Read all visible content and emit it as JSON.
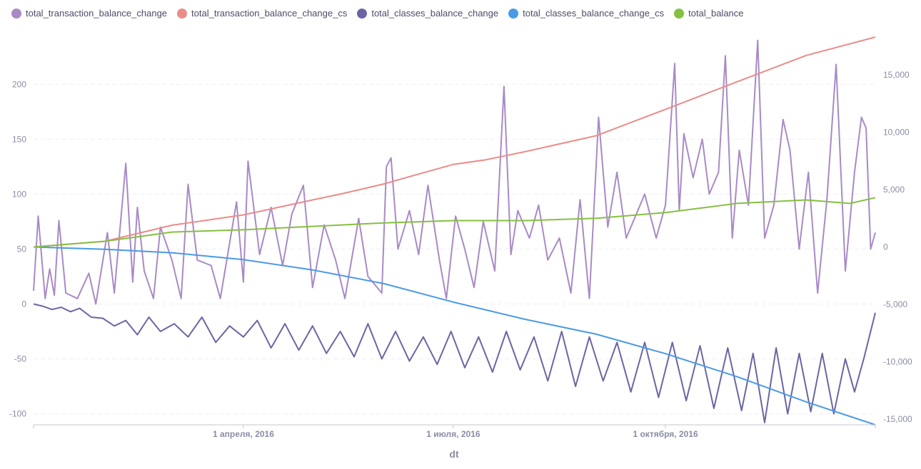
{
  "chart_data": {
    "type": "line",
    "xlabel": "dt",
    "x_range": [
      "2016-01-01",
      "2016-12-31"
    ],
    "x_ticks": [
      {
        "date": "2016-04-01",
        "label": "1 апреля, 2016"
      },
      {
        "date": "2016-07-01",
        "label": "1 июля, 2016"
      },
      {
        "date": "2016-10-01",
        "label": "1 октября, 2016"
      }
    ],
    "y_left": {
      "range": [
        -110,
        243
      ],
      "ticks": [
        -100,
        -50,
        0,
        50,
        100,
        150,
        200
      ],
      "tick_labels": [
        "-100",
        "-50",
        "0",
        "50",
        "100",
        "150",
        "200"
      ]
    },
    "y_right": {
      "range": [
        -15500,
        18300
      ],
      "ticks": [
        -15000,
        -10000,
        -5000,
        0,
        5000,
        10000,
        15000
      ],
      "tick_labels": [
        "-15,000",
        "-10,000",
        "-5,000",
        "0",
        "5,000",
        "10,000",
        "15,000"
      ]
    },
    "grid": true,
    "legend_position": "top-left",
    "series": [
      {
        "name": "total_transaction_balance_change",
        "color": "#a88ac6",
        "axis": "left",
        "points": [
          [
            "2016-01-01",
            12
          ],
          [
            "2016-01-03",
            80
          ],
          [
            "2016-01-06",
            5
          ],
          [
            "2016-01-08",
            32
          ],
          [
            "2016-01-10",
            8
          ],
          [
            "2016-01-12",
            76
          ],
          [
            "2016-01-15",
            10
          ],
          [
            "2016-01-20",
            5
          ],
          [
            "2016-01-25",
            28
          ],
          [
            "2016-01-28",
            0
          ],
          [
            "2016-02-02",
            65
          ],
          [
            "2016-02-05",
            10
          ],
          [
            "2016-02-10",
            128
          ],
          [
            "2016-02-13",
            20
          ],
          [
            "2016-02-15",
            88
          ],
          [
            "2016-02-18",
            30
          ],
          [
            "2016-02-22",
            5
          ],
          [
            "2016-02-25",
            70
          ],
          [
            "2016-03-01",
            40
          ],
          [
            "2016-03-05",
            5
          ],
          [
            "2016-03-08",
            109
          ],
          [
            "2016-03-12",
            40
          ],
          [
            "2016-03-18",
            35
          ],
          [
            "2016-03-22",
            5
          ],
          [
            "2016-03-29",
            93
          ],
          [
            "2016-04-01",
            20
          ],
          [
            "2016-04-03",
            130
          ],
          [
            "2016-04-08",
            45
          ],
          [
            "2016-04-13",
            88
          ],
          [
            "2016-04-18",
            35
          ],
          [
            "2016-04-22",
            82
          ],
          [
            "2016-04-27",
            108
          ],
          [
            "2016-05-01",
            15
          ],
          [
            "2016-05-06",
            72
          ],
          [
            "2016-05-11",
            40
          ],
          [
            "2016-05-15",
            5
          ],
          [
            "2016-05-21",
            78
          ],
          [
            "2016-05-25",
            25
          ],
          [
            "2016-05-31",
            10
          ],
          [
            "2016-06-02",
            125
          ],
          [
            "2016-06-04",
            133
          ],
          [
            "2016-06-07",
            50
          ],
          [
            "2016-06-12",
            85
          ],
          [
            "2016-06-16",
            45
          ],
          [
            "2016-06-20",
            108
          ],
          [
            "2016-06-25",
            40
          ],
          [
            "2016-06-28",
            5
          ],
          [
            "2016-07-02",
            80
          ],
          [
            "2016-07-06",
            50
          ],
          [
            "2016-07-10",
            15
          ],
          [
            "2016-07-14",
            75
          ],
          [
            "2016-07-19",
            30
          ],
          [
            "2016-07-23",
            198
          ],
          [
            "2016-07-26",
            45
          ],
          [
            "2016-07-29",
            85
          ],
          [
            "2016-08-03",
            60
          ],
          [
            "2016-08-07",
            90
          ],
          [
            "2016-08-11",
            40
          ],
          [
            "2016-08-16",
            60
          ],
          [
            "2016-08-21",
            10
          ],
          [
            "2016-08-25",
            95
          ],
          [
            "2016-08-29",
            5
          ],
          [
            "2016-09-02",
            170
          ],
          [
            "2016-09-06",
            70
          ],
          [
            "2016-09-10",
            120
          ],
          [
            "2016-09-14",
            60
          ],
          [
            "2016-09-18",
            80
          ],
          [
            "2016-09-22",
            100
          ],
          [
            "2016-09-27",
            60
          ],
          [
            "2016-10-01",
            90
          ],
          [
            "2016-10-05",
            219
          ],
          [
            "2016-10-07",
            85
          ],
          [
            "2016-10-09",
            155
          ],
          [
            "2016-10-13",
            115
          ],
          [
            "2016-10-17",
            150
          ],
          [
            "2016-10-20",
            100
          ],
          [
            "2016-10-24",
            120
          ],
          [
            "2016-10-27",
            226
          ],
          [
            "2016-10-30",
            60
          ],
          [
            "2016-11-02",
            140
          ],
          [
            "2016-11-06",
            90
          ],
          [
            "2016-11-10",
            240
          ],
          [
            "2016-11-13",
            60
          ],
          [
            "2016-11-17",
            90
          ],
          [
            "2016-11-21",
            168
          ],
          [
            "2016-11-24",
            140
          ],
          [
            "2016-11-28",
            50
          ],
          [
            "2016-12-02",
            120
          ],
          [
            "2016-12-06",
            10
          ],
          [
            "2016-12-10",
            95
          ],
          [
            "2016-12-14",
            218
          ],
          [
            "2016-12-18",
            30
          ],
          [
            "2016-12-22",
            120
          ],
          [
            "2016-12-25",
            170
          ],
          [
            "2016-12-27",
            160
          ],
          [
            "2016-12-29",
            50
          ],
          [
            "2016-12-31",
            65
          ]
        ]
      },
      {
        "name": "total_transaction_balance_change_cs",
        "color": "#ea8c8a",
        "axis": "right",
        "points": [
          [
            "2016-01-01",
            0
          ],
          [
            "2016-02-01",
            500
          ],
          [
            "2016-03-01",
            1900
          ],
          [
            "2016-04-01",
            2800
          ],
          [
            "2016-05-01",
            4100
          ],
          [
            "2016-05-15",
            4700
          ],
          [
            "2016-06-01",
            5500
          ],
          [
            "2016-06-15",
            6300
          ],
          [
            "2016-07-01",
            7200
          ],
          [
            "2016-07-15",
            7600
          ],
          [
            "2016-08-01",
            8300
          ],
          [
            "2016-09-01",
            9700
          ],
          [
            "2016-10-01",
            12000
          ],
          [
            "2016-11-01",
            14400
          ],
          [
            "2016-12-01",
            16700
          ],
          [
            "2016-12-31",
            18300
          ]
        ]
      },
      {
        "name": "total_classes_balance_change",
        "color": "#6a66a3",
        "axis": "left",
        "points": [
          [
            "2016-01-01",
            0
          ],
          [
            "2016-01-05",
            -2
          ],
          [
            "2016-01-09",
            -5
          ],
          [
            "2016-01-13",
            -3
          ],
          [
            "2016-01-17",
            -7
          ],
          [
            "2016-01-21",
            -4
          ],
          [
            "2016-01-26",
            -12
          ],
          [
            "2016-01-31",
            -13
          ],
          [
            "2016-02-05",
            -20
          ],
          [
            "2016-02-10",
            -15
          ],
          [
            "2016-02-15",
            -28
          ],
          [
            "2016-02-20",
            -12
          ],
          [
            "2016-02-25",
            -25
          ],
          [
            "2016-03-02",
            -18
          ],
          [
            "2016-03-08",
            -30
          ],
          [
            "2016-03-14",
            -12
          ],
          [
            "2016-03-20",
            -35
          ],
          [
            "2016-03-26",
            -20
          ],
          [
            "2016-04-01",
            -30
          ],
          [
            "2016-04-07",
            -15
          ],
          [
            "2016-04-13",
            -40
          ],
          [
            "2016-04-19",
            -18
          ],
          [
            "2016-04-25",
            -42
          ],
          [
            "2016-05-01",
            -20
          ],
          [
            "2016-05-07",
            -45
          ],
          [
            "2016-05-13",
            -25
          ],
          [
            "2016-05-19",
            -48
          ],
          [
            "2016-05-25",
            -18
          ],
          [
            "2016-05-31",
            -50
          ],
          [
            "2016-06-06",
            -25
          ],
          [
            "2016-06-12",
            -52
          ],
          [
            "2016-06-18",
            -30
          ],
          [
            "2016-06-24",
            -55
          ],
          [
            "2016-06-30",
            -25
          ],
          [
            "2016-07-06",
            -58
          ],
          [
            "2016-07-12",
            -30
          ],
          [
            "2016-07-18",
            -62
          ],
          [
            "2016-07-24",
            -25
          ],
          [
            "2016-07-30",
            -60
          ],
          [
            "2016-08-05",
            -30
          ],
          [
            "2016-08-11",
            -70
          ],
          [
            "2016-08-17",
            -25
          ],
          [
            "2016-08-23",
            -75
          ],
          [
            "2016-08-29",
            -30
          ],
          [
            "2016-09-04",
            -70
          ],
          [
            "2016-09-10",
            -35
          ],
          [
            "2016-09-16",
            -80
          ],
          [
            "2016-09-22",
            -35
          ],
          [
            "2016-09-28",
            -85
          ],
          [
            "2016-10-04",
            -35
          ],
          [
            "2016-10-10",
            -88
          ],
          [
            "2016-10-16",
            -38
          ],
          [
            "2016-10-22",
            -95
          ],
          [
            "2016-10-28",
            -40
          ],
          [
            "2016-11-03",
            -97
          ],
          [
            "2016-11-08",
            -45
          ],
          [
            "2016-11-13",
            -108
          ],
          [
            "2016-11-18",
            -40
          ],
          [
            "2016-11-23",
            -100
          ],
          [
            "2016-11-28",
            -45
          ],
          [
            "2016-12-03",
            -98
          ],
          [
            "2016-12-08",
            -45
          ],
          [
            "2016-12-13",
            -100
          ],
          [
            "2016-12-18",
            -50
          ],
          [
            "2016-12-22",
            -80
          ],
          [
            "2016-12-26",
            -50
          ],
          [
            "2016-12-31",
            -8
          ]
        ]
      },
      {
        "name": "total_classes_balance_change_cs",
        "color": "#4a9ae6",
        "axis": "right",
        "points": [
          [
            "2016-01-01",
            0
          ],
          [
            "2016-02-01",
            -200
          ],
          [
            "2016-03-01",
            -500
          ],
          [
            "2016-04-01",
            -1100
          ],
          [
            "2016-05-01",
            -2000
          ],
          [
            "2016-06-01",
            -3200
          ],
          [
            "2016-07-01",
            -4800
          ],
          [
            "2016-08-01",
            -6300
          ],
          [
            "2016-09-01",
            -7600
          ],
          [
            "2016-10-01",
            -9300
          ],
          [
            "2016-11-01",
            -11300
          ],
          [
            "2016-12-01",
            -13500
          ],
          [
            "2016-12-31",
            -15500
          ]
        ]
      },
      {
        "name": "total_balance",
        "color": "#86c040",
        "axis": "right",
        "points": [
          [
            "2016-01-01",
            0
          ],
          [
            "2016-02-01",
            500
          ],
          [
            "2016-03-01",
            1300
          ],
          [
            "2016-04-01",
            1500
          ],
          [
            "2016-05-01",
            1800
          ],
          [
            "2016-06-01",
            2100
          ],
          [
            "2016-07-01",
            2300
          ],
          [
            "2016-08-01",
            2300
          ],
          [
            "2016-09-01",
            2500
          ],
          [
            "2016-10-01",
            3000
          ],
          [
            "2016-11-01",
            3800
          ],
          [
            "2016-12-01",
            4100
          ],
          [
            "2016-12-20",
            3800
          ],
          [
            "2016-12-31",
            4300
          ]
        ]
      }
    ]
  }
}
